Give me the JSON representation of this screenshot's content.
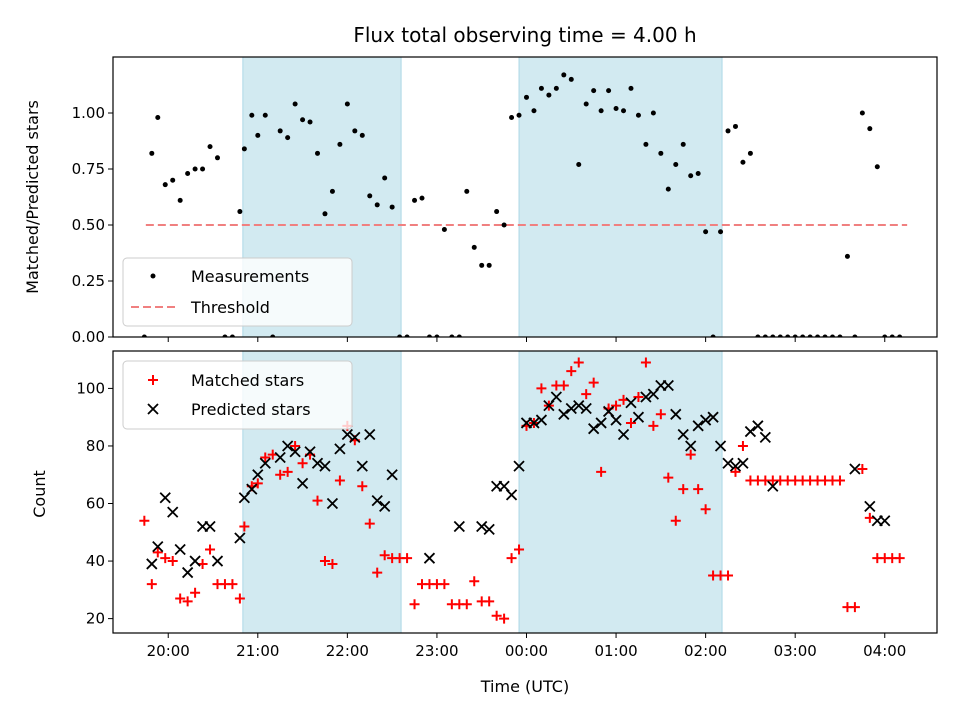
{
  "chart_data": [
    {
      "type": "scatter",
      "title": "Flux total observing time = 4.00 h",
      "xlabel": "",
      "ylabel": "Matched/Predicted stars",
      "ylim": [
        0,
        1.25
      ],
      "xlim": [
        "19:23",
        "04:35"
      ],
      "y_ticks": [
        "0.00",
        "0.25",
        "0.50",
        "0.75",
        "1.00"
      ],
      "x_ticks": [
        "20:00",
        "21:00",
        "22:00",
        "23:00",
        "00:00",
        "01:00",
        "02:00",
        "03:00",
        "04:00"
      ],
      "x_tick_labels_shown": false,
      "shaded_intervals": [
        [
          "20:50",
          "22:36"
        ],
        [
          "23:55",
          "02:11"
        ]
      ],
      "shade_color": "#add8e6",
      "threshold": {
        "name": "Threshold",
        "value": 0.5,
        "x_range": [
          "19:45",
          "04:15"
        ],
        "color": "#f08080"
      },
      "series": [
        {
          "name": "Measurements",
          "color": "#000000",
          "x": [
            "19:44",
            "19:49",
            "19:53",
            "19:58",
            "20:03",
            "20:08",
            "20:13",
            "20:18",
            "20:23",
            "20:28",
            "20:33",
            "20:38",
            "20:43",
            "20:48",
            "20:51",
            "20:56",
            "21:00",
            "21:05",
            "21:10",
            "21:15",
            "21:20",
            "21:25",
            "21:30",
            "21:35",
            "21:40",
            "21:45",
            "21:50",
            "21:55",
            "22:00",
            "22:05",
            "22:10",
            "22:15",
            "22:20",
            "22:25",
            "22:30",
            "22:35",
            "22:40",
            "22:45",
            "22:50",
            "22:55",
            "23:00",
            "23:05",
            "23:10",
            "23:15",
            "23:20",
            "23:25",
            "23:30",
            "23:35",
            "23:40",
            "23:45",
            "23:50",
            "23:55",
            "00:00",
            "00:05",
            "00:10",
            "00:15",
            "00:20",
            "00:25",
            "00:30",
            "00:35",
            "00:40",
            "00:45",
            "00:50",
            "00:55",
            "01:00",
            "01:05",
            "01:10",
            "01:15",
            "01:20",
            "01:25",
            "01:30",
            "01:35",
            "01:40",
            "01:45",
            "01:50",
            "01:55",
            "02:00",
            "02:05",
            "02:10",
            "02:15",
            "02:20",
            "02:25",
            "02:30",
            "02:35",
            "02:40",
            "02:45",
            "02:50",
            "02:55",
            "03:00",
            "03:05",
            "03:10",
            "03:15",
            "03:20",
            "03:25",
            "03:30",
            "03:35",
            "03:40",
            "03:45",
            "03:50",
            "03:55",
            "04:00",
            "04:05",
            "04:10"
          ],
          "y": [
            0,
            0.82,
            0.98,
            0.68,
            0.7,
            0.61,
            0.73,
            0.75,
            0.75,
            0.85,
            0.8,
            0,
            0,
            0.56,
            0.84,
            0.99,
            0.9,
            0.99,
            0,
            0.92,
            0.89,
            1.04,
            0.97,
            0.96,
            0.82,
            0.55,
            0.65,
            0.86,
            1.04,
            0.92,
            0.9,
            0.63,
            0.59,
            0.71,
            0.58,
            0,
            0,
            0.61,
            0.62,
            0,
            0,
            0.48,
            0,
            0,
            0.65,
            0.4,
            0.32,
            0.32,
            0.56,
            0.5,
            0.98,
            0.99,
            1.07,
            1.01,
            1.11,
            1.08,
            1.11,
            1.17,
            1.15,
            0.77,
            1.04,
            1.1,
            1.01,
            1.1,
            1.02,
            1.01,
            1.11,
            0.99,
            0.86,
            1.0,
            0.82,
            0.66,
            0.77,
            0.86,
            0.72,
            0.73,
            0.47,
            0,
            0.47,
            0.92,
            0.94,
            0.78,
            0.82,
            0,
            0,
            0,
            0,
            0,
            0,
            0,
            0,
            0,
            0,
            0,
            0,
            0.36,
            0,
            1.0,
            0.93,
            0.76,
            0,
            0,
            0
          ]
        }
      ],
      "legend": {
        "position": "lower-left",
        "entries": [
          "Measurements",
          "Threshold"
        ]
      }
    },
    {
      "type": "scatter",
      "title": "",
      "xlabel": "Time (UTC)",
      "ylabel": "Count",
      "ylim": [
        15,
        113
      ],
      "xlim": [
        "19:23",
        "04:35"
      ],
      "y_ticks": [
        "20",
        "40",
        "60",
        "80",
        "100"
      ],
      "x_ticks": [
        "20:00",
        "21:00",
        "22:00",
        "23:00",
        "00:00",
        "01:00",
        "02:00",
        "03:00",
        "04:00"
      ],
      "shaded_intervals": [
        [
          "20:50",
          "22:36"
        ],
        [
          "23:55",
          "02:11"
        ]
      ],
      "shade_color": "#add8e6",
      "series": [
        {
          "name": "Matched stars",
          "marker": "plus",
          "color": "#ff0000",
          "x": [
            "19:44",
            "19:49",
            "19:53",
            "19:58",
            "20:03",
            "20:08",
            "20:13",
            "20:18",
            "20:23",
            "20:28",
            "20:33",
            "20:38",
            "20:43",
            "20:48",
            "20:51",
            "20:56",
            "21:00",
            "21:05",
            "21:10",
            "21:15",
            "21:20",
            "21:25",
            "21:30",
            "21:35",
            "21:40",
            "21:45",
            "21:50",
            "21:55",
            "22:00",
            "22:05",
            "22:10",
            "22:15",
            "22:20",
            "22:25",
            "22:30",
            "22:35",
            "22:40",
            "22:45",
            "22:50",
            "22:55",
            "23:00",
            "23:05",
            "23:10",
            "23:15",
            "23:20",
            "23:25",
            "23:30",
            "23:35",
            "23:40",
            "23:45",
            "23:50",
            "23:55",
            "00:00",
            "00:05",
            "00:10",
            "00:15",
            "00:20",
            "00:25",
            "00:30",
            "00:35",
            "00:40",
            "00:45",
            "00:50",
            "00:55",
            "01:00",
            "01:05",
            "01:10",
            "01:15",
            "01:20",
            "01:25",
            "01:30",
            "01:35",
            "01:40",
            "01:45",
            "01:50",
            "01:55",
            "02:00",
            "02:05",
            "02:10",
            "02:15",
            "02:20",
            "02:25",
            "02:30",
            "02:35",
            "02:40",
            "02:45",
            "02:50",
            "02:55",
            "03:00",
            "03:05",
            "03:10",
            "03:15",
            "03:20",
            "03:25",
            "03:30",
            "03:35",
            "03:40",
            "03:45",
            "03:50",
            "03:55",
            "04:00",
            "04:05",
            "04:10"
          ],
          "y": [
            54,
            32,
            43,
            41,
            40,
            27,
            26,
            29,
            39,
            44,
            32,
            32,
            32,
            27,
            52,
            66,
            67,
            76,
            77,
            70,
            71,
            80,
            74,
            77,
            61,
            40,
            39,
            68,
            87,
            82,
            66,
            53,
            36,
            42,
            41,
            41,
            41,
            25,
            32,
            32,
            32,
            32,
            25,
            25,
            25,
            33,
            26,
            26,
            21,
            20,
            41,
            44,
            87,
            88,
            100,
            94,
            101,
            101,
            106,
            109,
            98,
            102,
            71,
            93,
            94,
            96,
            88,
            97,
            109,
            87,
            91,
            69,
            54,
            65,
            77,
            65,
            58,
            35,
            35,
            35,
            71,
            80,
            68,
            68,
            68,
            68,
            68,
            68,
            68,
            68,
            68,
            68,
            68,
            68,
            68,
            24,
            24,
            72,
            55,
            41,
            41,
            41,
            41
          ]
        },
        {
          "name": "Predicted stars",
          "marker": "x",
          "color": "#000000",
          "x": [
            "19:49",
            "19:53",
            "19:58",
            "20:03",
            "20:08",
            "20:13",
            "20:18",
            "20:23",
            "20:28",
            "20:33",
            "20:48",
            "20:51",
            "20:56",
            "21:00",
            "21:05",
            "21:15",
            "21:20",
            "21:25",
            "21:30",
            "21:35",
            "21:40",
            "21:45",
            "21:50",
            "21:55",
            "22:00",
            "22:05",
            "22:10",
            "22:15",
            "22:20",
            "22:25",
            "22:30",
            "22:55",
            "23:15",
            "23:30",
            "23:35",
            "23:40",
            "23:45",
            "23:50",
            "23:55",
            "00:00",
            "00:05",
            "00:10",
            "00:15",
            "00:20",
            "00:25",
            "00:30",
            "00:35",
            "00:40",
            "00:45",
            "00:50",
            "00:55",
            "01:00",
            "01:05",
            "01:10",
            "01:15",
            "01:20",
            "01:25",
            "01:30",
            "01:35",
            "01:40",
            "01:45",
            "01:50",
            "01:55",
            "02:00",
            "02:05",
            "02:10",
            "02:15",
            "02:20",
            "02:25",
            "02:30",
            "02:35",
            "02:40",
            "02:45",
            "03:40",
            "03:50",
            "03:55",
            "04:00"
          ],
          "y": [
            39,
            45,
            62,
            57,
            44,
            36,
            40,
            52,
            52,
            40,
            48,
            62,
            65,
            70,
            74,
            76,
            80,
            78,
            67,
            78,
            74,
            73,
            60,
            79,
            84,
            83,
            73,
            84,
            61,
            59,
            70,
            41,
            52,
            52,
            51,
            66,
            66,
            63,
            73,
            88,
            88,
            89,
            94,
            97,
            91,
            93,
            94,
            93,
            86,
            88,
            92,
            89,
            84,
            95,
            90,
            97,
            98,
            101,
            101,
            91,
            84,
            80,
            87,
            89,
            90,
            80,
            74,
            73,
            74,
            85,
            87,
            83,
            66,
            72,
            59,
            54,
            54
          ]
        }
      ],
      "legend": {
        "position": "upper-left",
        "entries": [
          "Matched stars",
          "Predicted stars"
        ]
      }
    }
  ]
}
